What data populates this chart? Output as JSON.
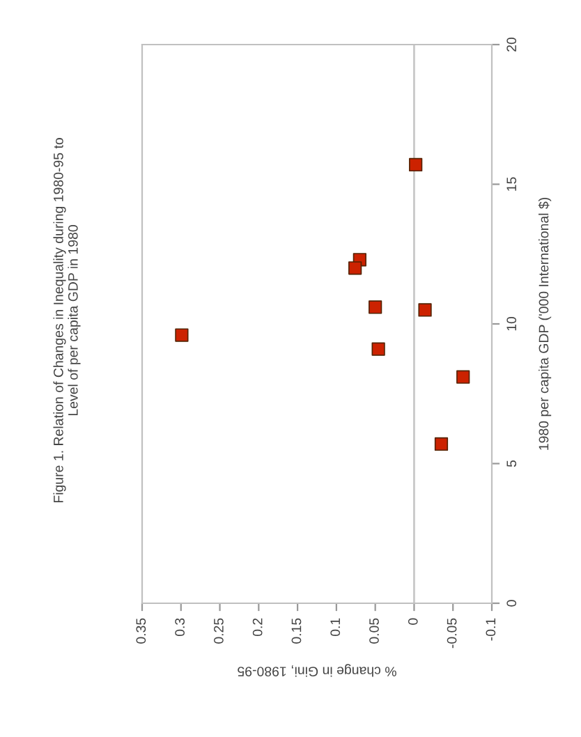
{
  "chart_data": {
    "type": "scatter",
    "title": "Figure 1. Relation of Changes in Inequality during 1980-95 to\nLevel of per capita GDP in 1980",
    "xlabel": "% change in Gini, 1980-95",
    "ylabel": "1980 per capita GDP ('000 International $)",
    "x": [
      -0.002,
      0.07,
      0.076,
      0.05,
      -0.014,
      0.299,
      0.046,
      -0.063,
      -0.035
    ],
    "values": [
      15.7,
      12.3,
      12.0,
      10.6,
      10.5,
      9.6,
      9.1,
      8.1,
      5.7
    ],
    "color": "#cc2200",
    "marker": "square",
    "xlim": [
      0.35,
      -0.1
    ],
    "xticks": [
      0.35,
      0.3,
      0.25,
      0.2,
      0.15,
      0.1,
      0.05,
      0,
      -0.05,
      -0.1
    ],
    "ylim": [
      0,
      20
    ],
    "yticks": [
      0,
      5,
      10,
      15,
      20
    ],
    "ref_lines": [
      {
        "axis": "x",
        "value": 0,
        "color": "#c8c8c8"
      }
    ],
    "grid": false,
    "legend": false
  }
}
